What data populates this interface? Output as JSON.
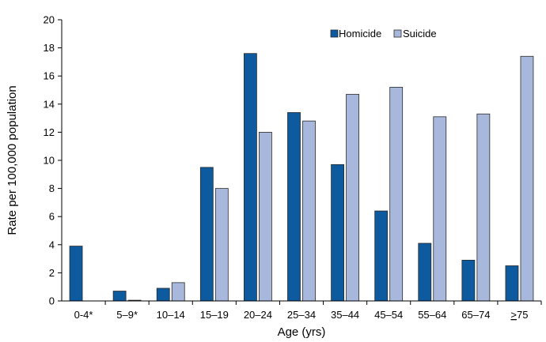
{
  "chart_data": {
    "type": "bar",
    "categories": [
      "0-4*",
      "5–9*",
      "10–14",
      "15–19",
      "20–24",
      "25–34",
      "35–44",
      "45–54",
      "55–64",
      "65–74",
      "≥75"
    ],
    "series": [
      {
        "name": "Homicide",
        "color": "#0d5a9e",
        "values": [
          3.9,
          0.7,
          0.9,
          9.5,
          17.6,
          13.4,
          9.7,
          6.4,
          4.1,
          2.9,
          2.5
        ]
      },
      {
        "name": "Suicide",
        "color": "#a8b8dc",
        "values": [
          0,
          0.05,
          1.3,
          8.0,
          12.0,
          12.8,
          14.7,
          15.2,
          13.1,
          13.3,
          17.4
        ]
      }
    ],
    "xlabel": "Age (yrs)",
    "ylabel": "Rate per 100,000 population",
    "ylim": [
      0,
      20
    ],
    "yticks": [
      0,
      2,
      4,
      6,
      8,
      10,
      12,
      14,
      16,
      18,
      20
    ],
    "legend_position": "top-right",
    "grid": false,
    "bar_border_color": "#2a2a2a"
  }
}
